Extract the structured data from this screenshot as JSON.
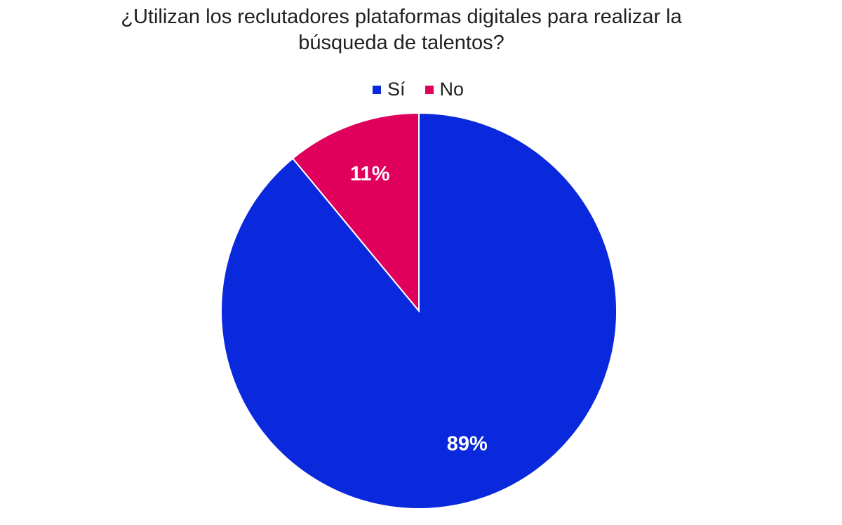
{
  "chart_data": {
    "type": "pie",
    "title_lines": [
      "¿Utilizan los reclutadores plataformas digitales para realizar la",
      "búsqueda de talentos?"
    ],
    "categories": [
      "Sí",
      "No"
    ],
    "values": [
      89,
      11
    ],
    "data_labels": [
      "89%",
      "11%"
    ],
    "colors": [
      "#0a28dc",
      "#e0005c"
    ],
    "legend_position": "top-center",
    "start_angle": "12 o'clock",
    "direction": "clockwise"
  }
}
